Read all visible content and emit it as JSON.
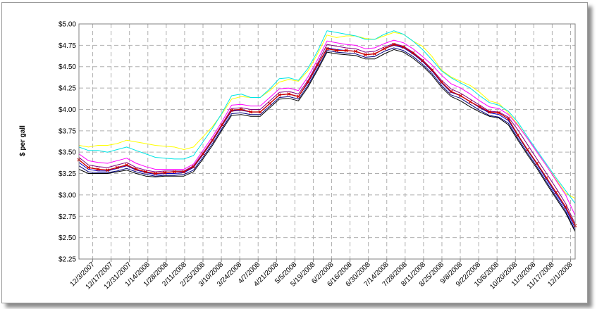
{
  "chart_data": {
    "type": "line",
    "title": "",
    "xlabel": "",
    "ylabel": "$ per gall",
    "ylim": [
      2.25,
      5.0
    ],
    "yticks": [
      2.25,
      2.5,
      2.75,
      3.0,
      3.25,
      3.5,
      3.75,
      4.0,
      4.25,
      4.5,
      4.75,
      5.0
    ],
    "ytick_labels": [
      "$2.25",
      "$2.50",
      "$2.75",
      "$3.00",
      "$3.25",
      "$3.50",
      "$3.75",
      "$4.00",
      "$4.25",
      "$4.50",
      "$4.75",
      "$5.00"
    ],
    "grid": true,
    "legend": "none",
    "x_labels": [
      "12/3/2007",
      "12/17/2007",
      "12/31/2007",
      "1/14/2008",
      "1/28/2008",
      "2/11/2008",
      "2/25/2008",
      "3/10/2008",
      "3/24/2008",
      "4/7/2008",
      "4/21/2008",
      "5/5/2008",
      "5/19/2008",
      "6/2/2008",
      "6/16/2008",
      "6/30/2008",
      "7/14/2008",
      "7/28/2008",
      "8/11/2008",
      "8/25/2008",
      "9/8/2008",
      "9/22/2008",
      "10/6/2008",
      "10/20/2008",
      "11/3/2008",
      "11/17/2008",
      "12/1/2008"
    ],
    "series": [
      {
        "color": "#ffff00",
        "marker": false,
        "values": [
          3.58,
          3.56,
          3.58,
          3.58,
          3.6,
          3.64,
          3.62,
          3.6,
          3.58,
          3.57,
          3.56,
          3.53,
          3.56,
          3.68,
          3.8,
          3.95,
          4.12,
          4.15,
          4.14,
          4.14,
          4.22,
          4.32,
          4.35,
          4.33,
          4.45,
          4.65,
          4.87,
          4.84,
          4.86,
          4.86,
          4.83,
          4.82,
          4.86,
          4.9,
          4.88,
          4.8,
          4.74,
          4.62,
          4.46,
          4.38,
          4.33,
          4.28,
          4.2,
          4.1,
          4.07,
          3.96,
          3.82,
          3.66,
          3.5,
          3.34,
          3.18,
          3.02,
          2.96
        ]
      },
      {
        "color": "#00e5e5",
        "marker": false,
        "values": [
          3.56,
          3.52,
          3.52,
          3.5,
          3.53,
          3.56,
          3.52,
          3.48,
          3.44,
          3.43,
          3.42,
          3.42,
          3.46,
          3.62,
          3.78,
          3.96,
          4.16,
          4.18,
          4.14,
          4.14,
          4.24,
          4.36,
          4.37,
          4.34,
          4.48,
          4.68,
          4.92,
          4.9,
          4.88,
          4.86,
          4.82,
          4.82,
          4.88,
          4.92,
          4.88,
          4.8,
          4.7,
          4.58,
          4.45,
          4.37,
          4.31,
          4.25,
          4.16,
          4.08,
          4.05,
          3.98,
          3.85,
          3.68,
          3.52,
          3.36,
          3.2,
          3.05,
          2.9
        ]
      },
      {
        "color": "#ff00ff",
        "marker": false,
        "values": [
          3.48,
          3.4,
          3.38,
          3.37,
          3.4,
          3.43,
          3.37,
          3.33,
          3.3,
          3.3,
          3.3,
          3.3,
          3.36,
          3.52,
          3.68,
          3.86,
          4.05,
          4.06,
          4.04,
          4.04,
          4.14,
          4.24,
          4.25,
          4.22,
          4.38,
          4.58,
          4.8,
          4.78,
          4.76,
          4.75,
          4.71,
          4.72,
          4.77,
          4.81,
          4.78,
          4.71,
          4.62,
          4.52,
          4.4,
          4.3,
          4.25,
          4.18,
          4.1,
          4.03,
          4.01,
          3.94,
          3.81,
          3.66,
          3.5,
          3.34,
          3.17,
          3.0,
          2.76
        ]
      },
      {
        "color": "#800080",
        "marker": false,
        "values": [
          3.44,
          3.35,
          3.33,
          3.32,
          3.35,
          3.38,
          3.32,
          3.29,
          3.27,
          3.28,
          3.28,
          3.28,
          3.34,
          3.49,
          3.65,
          3.83,
          4.01,
          4.02,
          4.0,
          4.0,
          4.1,
          4.2,
          4.21,
          4.18,
          4.34,
          4.54,
          4.76,
          4.74,
          4.72,
          4.71,
          4.67,
          4.68,
          4.73,
          4.77,
          4.74,
          4.67,
          4.58,
          4.47,
          4.34,
          4.24,
          4.19,
          4.12,
          4.05,
          3.98,
          3.97,
          3.91,
          3.76,
          3.59,
          3.42,
          3.25,
          3.08,
          2.9,
          2.66
        ]
      },
      {
        "color": "#0000cc",
        "marker": false,
        "values": [
          3.38,
          3.3,
          3.28,
          3.28,
          3.31,
          3.34,
          3.29,
          3.26,
          3.24,
          3.25,
          3.25,
          3.26,
          3.32,
          3.47,
          3.63,
          3.81,
          3.98,
          3.99,
          3.97,
          3.97,
          4.07,
          4.17,
          4.18,
          4.15,
          4.31,
          4.51,
          4.72,
          4.7,
          4.69,
          4.68,
          4.64,
          4.65,
          4.71,
          4.75,
          4.72,
          4.65,
          4.56,
          4.45,
          4.31,
          4.2,
          4.16,
          4.09,
          4.02,
          3.96,
          3.94,
          3.87,
          3.69,
          3.52,
          3.36,
          3.18,
          3.01,
          2.84,
          2.61
        ]
      },
      {
        "color": "#000080",
        "marker": false,
        "values": [
          3.34,
          3.27,
          3.26,
          3.26,
          3.28,
          3.31,
          3.27,
          3.24,
          3.22,
          3.23,
          3.23,
          3.24,
          3.29,
          3.44,
          3.6,
          3.78,
          3.95,
          3.96,
          3.94,
          3.94,
          4.04,
          4.14,
          4.15,
          4.12,
          4.28,
          4.48,
          4.69,
          4.67,
          4.66,
          4.65,
          4.61,
          4.62,
          4.68,
          4.72,
          4.69,
          4.62,
          4.53,
          4.42,
          4.28,
          4.17,
          4.13,
          4.06,
          3.99,
          3.93,
          3.91,
          3.84,
          3.66,
          3.49,
          3.33,
          3.15,
          2.98,
          2.81,
          2.58
        ]
      },
      {
        "color": "#000000",
        "marker": false,
        "values": [
          3.3,
          3.25,
          3.25,
          3.25,
          3.27,
          3.29,
          3.25,
          3.22,
          3.21,
          3.22,
          3.22,
          3.22,
          3.27,
          3.42,
          3.58,
          3.76,
          3.93,
          3.94,
          3.92,
          3.92,
          4.02,
          4.12,
          4.13,
          4.1,
          4.26,
          4.46,
          4.67,
          4.65,
          4.64,
          4.63,
          4.59,
          4.59,
          4.65,
          4.7,
          4.67,
          4.6,
          4.51,
          4.4,
          4.26,
          4.15,
          4.1,
          4.03,
          3.97,
          3.92,
          3.9,
          3.82,
          3.64,
          3.47,
          3.31,
          3.13,
          2.96,
          2.79,
          2.57
        ]
      },
      {
        "color": "#cc0000",
        "marker": true,
        "values": [
          3.41,
          3.32,
          3.3,
          3.29,
          3.32,
          3.35,
          3.3,
          3.27,
          3.25,
          3.26,
          3.27,
          3.27,
          3.33,
          3.48,
          3.64,
          3.82,
          3.99,
          4.0,
          3.97,
          3.97,
          4.07,
          4.17,
          4.18,
          4.15,
          4.32,
          4.52,
          4.71,
          4.69,
          4.69,
          4.68,
          4.64,
          4.65,
          4.71,
          4.76,
          4.73,
          4.66,
          4.57,
          4.46,
          4.32,
          4.21,
          4.16,
          4.09,
          4.03,
          3.97,
          3.96,
          3.89,
          3.7,
          3.53,
          3.37,
          3.2,
          3.03,
          2.86,
          2.64
        ]
      }
    ]
  }
}
